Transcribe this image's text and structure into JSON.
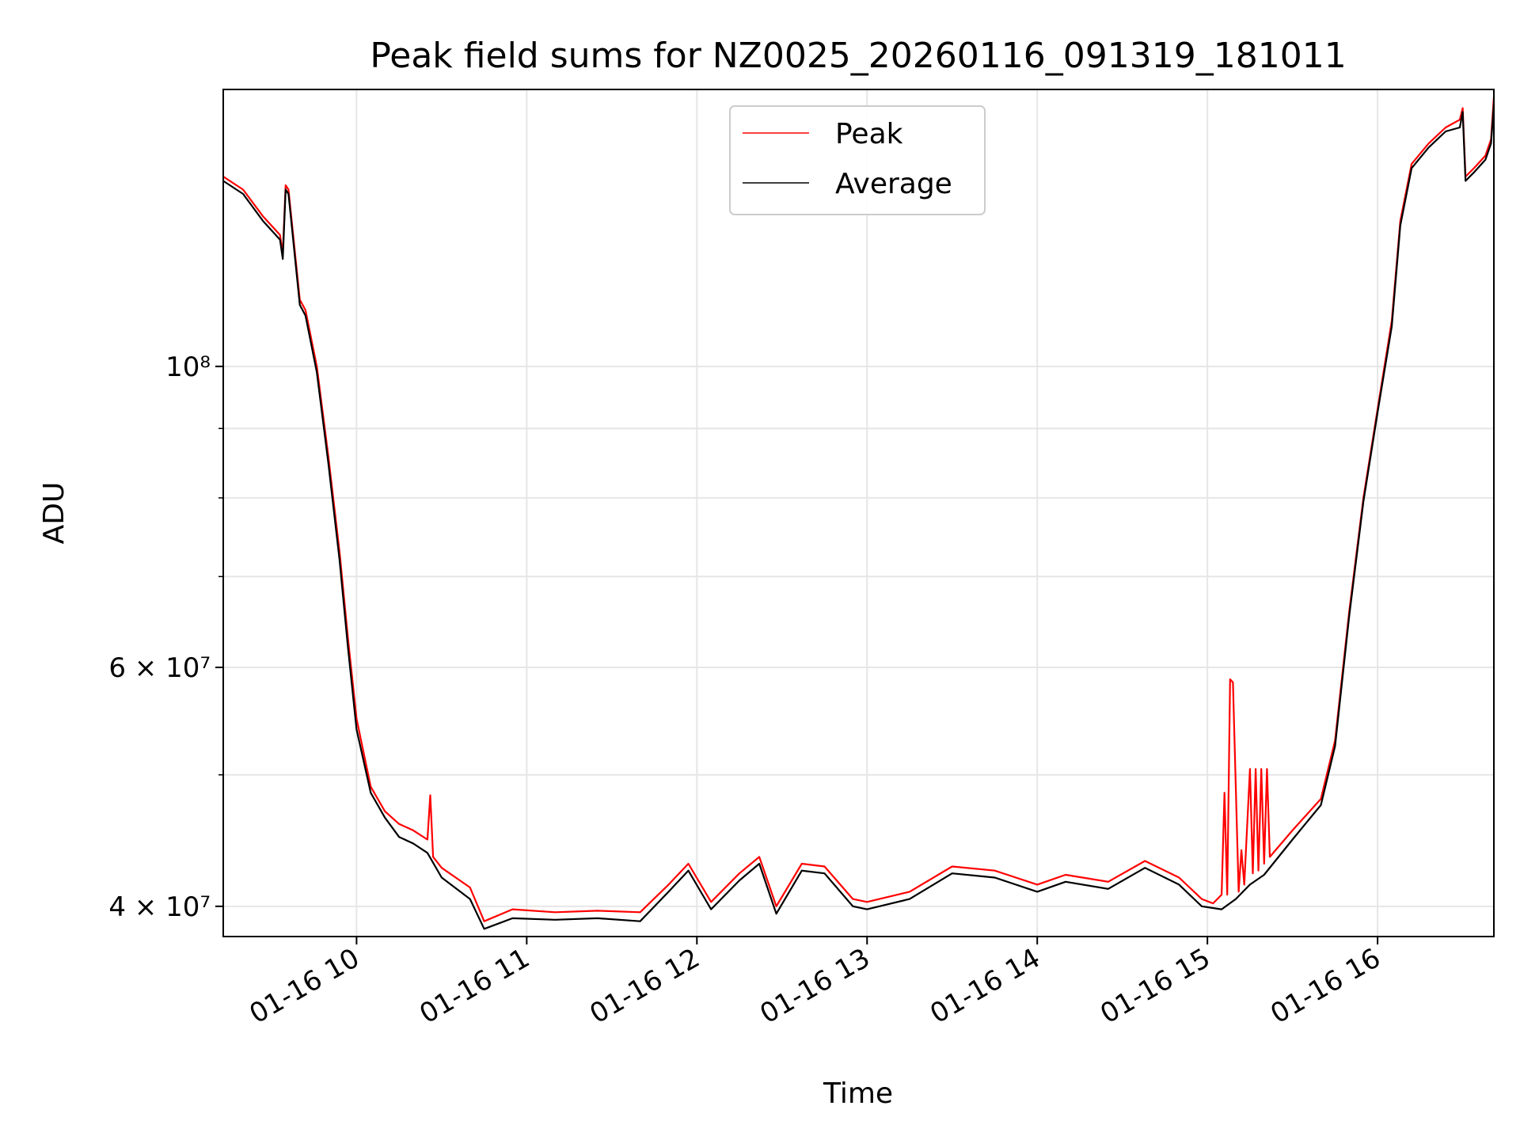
{
  "chart_data": {
    "type": "line",
    "title": "Peak field sums for NZ0025_20260116_091319_181011",
    "xlabel": "Time",
    "ylabel": "ADU",
    "y_scale": "log",
    "ylim": [
      38000000,
      160000000
    ],
    "xlim": [
      "2026-01-16 09:13",
      "2026-01-16 16:41"
    ],
    "grid": true,
    "legend_position": "top-center",
    "x_ticks": [
      {
        "value": "2026-01-16 10:00",
        "label": "01-16 10"
      },
      {
        "value": "2026-01-16 11:00",
        "label": "01-16 11"
      },
      {
        "value": "2026-01-16 12:00",
        "label": "01-16 12"
      },
      {
        "value": "2026-01-16 13:00",
        "label": "01-16 13"
      },
      {
        "value": "2026-01-16 14:00",
        "label": "01-16 14"
      },
      {
        "value": "2026-01-16 15:00",
        "label": "01-16 15"
      },
      {
        "value": "2026-01-16 16:00",
        "label": "01-16 16"
      }
    ],
    "y_ticks": [
      {
        "value": 40000000,
        "label": "4 × 10⁷"
      },
      {
        "value": 60000000,
        "label": "6 × 10⁷"
      },
      {
        "value": 100000000,
        "label": "10⁸"
      }
    ],
    "series": [
      {
        "name": "Peak",
        "color": "#ff0000",
        "x": [
          "2026-01-16 09:13",
          "2026-01-16 09:20",
          "2026-01-16 09:27",
          "2026-01-16 09:33",
          "2026-01-16 09:34",
          "2026-01-16 09:35",
          "2026-01-16 09:36",
          "2026-01-16 09:40",
          "2026-01-16 09:42",
          "2026-01-16 09:46",
          "2026-01-16 09:50",
          "2026-01-16 09:54",
          "2026-01-16 09:57",
          "2026-01-16 10:00",
          "2026-01-16 10:05",
          "2026-01-16 10:10",
          "2026-01-16 10:15",
          "2026-01-16 10:20",
          "2026-01-16 10:25",
          "2026-01-16 10:26",
          "2026-01-16 10:27",
          "2026-01-16 10:30",
          "2026-01-16 10:40",
          "2026-01-16 10:45",
          "2026-01-16 10:55",
          "2026-01-16 11:10",
          "2026-01-16 11:25",
          "2026-01-16 11:40",
          "2026-01-16 11:50",
          "2026-01-16 11:57",
          "2026-01-16 12:05",
          "2026-01-16 12:15",
          "2026-01-16 12:22",
          "2026-01-16 12:28",
          "2026-01-16 12:37",
          "2026-01-16 12:45",
          "2026-01-16 12:55",
          "2026-01-16 13:00",
          "2026-01-16 13:15",
          "2026-01-16 13:30",
          "2026-01-16 13:45",
          "2026-01-16 14:00",
          "2026-01-16 14:10",
          "2026-01-16 14:25",
          "2026-01-16 14:38",
          "2026-01-16 14:50",
          "2026-01-16 14:58",
          "2026-01-16 15:02",
          "2026-01-16 15:05",
          "2026-01-16 15:06",
          "2026-01-16 15:07",
          "2026-01-16 15:08",
          "2026-01-16 15:09",
          "2026-01-16 15:11",
          "2026-01-16 15:12",
          "2026-01-16 15:13",
          "2026-01-16 15:15",
          "2026-01-16 15:16",
          "2026-01-16 15:17",
          "2026-01-16 15:18",
          "2026-01-16 15:19",
          "2026-01-16 15:20",
          "2026-01-16 15:21",
          "2026-01-16 15:22",
          "2026-01-16 15:30",
          "2026-01-16 15:40",
          "2026-01-16 15:45",
          "2026-01-16 15:50",
          "2026-01-16 15:55",
          "2026-01-16 16:00",
          "2026-01-16 16:05",
          "2026-01-16 16:08",
          "2026-01-16 16:12",
          "2026-01-16 16:18",
          "2026-01-16 16:24",
          "2026-01-16 16:29",
          "2026-01-16 16:30",
          "2026-01-16 16:31",
          "2026-01-16 16:34",
          "2026-01-16 16:38",
          "2026-01-16 16:40",
          "2026-01-16 16:41"
        ],
        "values": [
          138000000,
          135000000,
          129000000,
          125000000,
          121000000,
          136000000,
          135000000,
          112000000,
          110000000,
          100000000,
          86000000,
          73000000,
          63000000,
          55000000,
          49000000,
          47000000,
          46000000,
          45500000,
          44800000,
          48300000,
          43500000,
          42700000,
          41300000,
          39000000,
          39800000,
          39600000,
          39700000,
          39600000,
          41500000,
          43000000,
          40300000,
          42300000,
          43500000,
          40000000,
          43000000,
          42800000,
          40500000,
          40300000,
          41000000,
          42800000,
          42500000,
          41500000,
          42200000,
          41700000,
          43200000,
          42000000,
          40500000,
          40200000,
          40800000,
          48500000,
          40800000,
          58800000,
          58500000,
          41000000,
          44000000,
          41500000,
          50500000,
          42300000,
          50500000,
          42500000,
          50500000,
          43000000,
          50500000,
          43500000,
          45500000,
          48000000,
          53000000,
          66000000,
          80000000,
          93000000,
          108000000,
          128000000,
          141000000,
          146000000,
          150000000,
          152000000,
          155000000,
          138000000,
          140000000,
          143000000,
          147000000,
          158000000
        ]
      },
      {
        "name": "Average",
        "color": "#000000",
        "x": [
          "2026-01-16 09:13",
          "2026-01-16 09:20",
          "2026-01-16 09:27",
          "2026-01-16 09:33",
          "2026-01-16 09:34",
          "2026-01-16 09:35",
          "2026-01-16 09:36",
          "2026-01-16 09:40",
          "2026-01-16 09:42",
          "2026-01-16 09:46",
          "2026-01-16 09:50",
          "2026-01-16 09:54",
          "2026-01-16 09:57",
          "2026-01-16 10:00",
          "2026-01-16 10:05",
          "2026-01-16 10:10",
          "2026-01-16 10:15",
          "2026-01-16 10:20",
          "2026-01-16 10:25",
          "2026-01-16 10:30",
          "2026-01-16 10:40",
          "2026-01-16 10:45",
          "2026-01-16 10:55",
          "2026-01-16 11:10",
          "2026-01-16 11:25",
          "2026-01-16 11:40",
          "2026-01-16 11:50",
          "2026-01-16 11:57",
          "2026-01-16 12:05",
          "2026-01-16 12:15",
          "2026-01-16 12:22",
          "2026-01-16 12:28",
          "2026-01-16 12:37",
          "2026-01-16 12:45",
          "2026-01-16 12:55",
          "2026-01-16 13:00",
          "2026-01-16 13:15",
          "2026-01-16 13:30",
          "2026-01-16 13:45",
          "2026-01-16 14:00",
          "2026-01-16 14:10",
          "2026-01-16 14:25",
          "2026-01-16 14:38",
          "2026-01-16 14:50",
          "2026-01-16 14:58",
          "2026-01-16 15:05",
          "2026-01-16 15:10",
          "2026-01-16 15:15",
          "2026-01-16 15:20",
          "2026-01-16 15:30",
          "2026-01-16 15:40",
          "2026-01-16 15:45",
          "2026-01-16 15:50",
          "2026-01-16 15:55",
          "2026-01-16 16:00",
          "2026-01-16 16:05",
          "2026-01-16 16:08",
          "2026-01-16 16:12",
          "2026-01-16 16:18",
          "2026-01-16 16:24",
          "2026-01-16 16:29",
          "2026-01-16 16:30",
          "2026-01-16 16:31",
          "2026-01-16 16:34",
          "2026-01-16 16:38",
          "2026-01-16 16:40",
          "2026-01-16 16:41"
        ],
        "values": [
          137000000,
          134000000,
          128000000,
          124000000,
          120000000,
          135000000,
          134000000,
          111000000,
          109000000,
          99000000,
          85000000,
          72000000,
          62000000,
          54000000,
          48500000,
          46500000,
          45000000,
          44500000,
          43800000,
          42000000,
          40500000,
          38500000,
          39200000,
          39100000,
          39200000,
          39000000,
          41000000,
          42500000,
          39800000,
          41800000,
          43000000,
          39500000,
          42500000,
          42300000,
          40000000,
          39800000,
          40500000,
          42300000,
          42000000,
          41000000,
          41700000,
          41200000,
          42700000,
          41500000,
          40000000,
          39800000,
          40500000,
          41500000,
          42200000,
          44800000,
          47500000,
          52500000,
          65500000,
          79500000,
          92500000,
          107000000,
          127000000,
          140000000,
          145000000,
          149000000,
          150000000,
          154000000,
          137000000,
          139000000,
          142000000,
          146000000,
          156000000
        ]
      }
    ]
  }
}
